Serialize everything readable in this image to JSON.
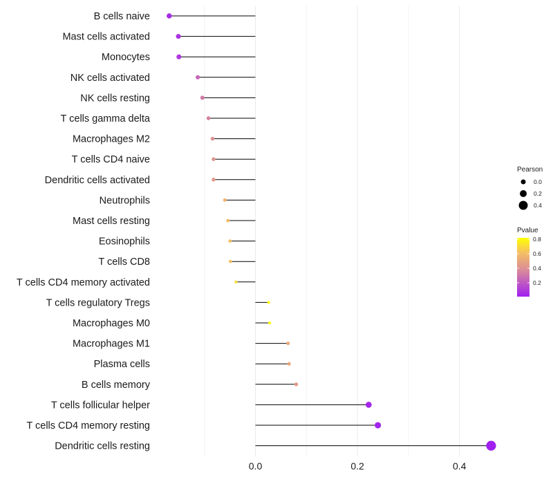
{
  "chart_data": {
    "type": "lollipop",
    "title": "",
    "xlabel": "",
    "ylabel": "",
    "xlim": [
      -0.2,
      0.5
    ],
    "x_ticks": [
      0.0,
      0.2,
      0.4
    ],
    "x_tick_labels": [
      "0.0",
      "0.2",
      "0.4"
    ],
    "categories": [
      "B cells naive",
      "Mast cells activated",
      "Monocytes",
      "NK cells activated",
      "NK cells resting",
      "T cells gamma delta",
      "Macrophages M2",
      "T cells CD4 naive",
      "Dendritic cells activated",
      "Neutrophils",
      "Mast cells resting",
      "Eosinophils",
      "T cells CD8",
      "T cells CD4 memory activated",
      "T cells regulatory  Tregs",
      "Macrophages M0",
      "Macrophages M1",
      "Plasma cells",
      "B cells memory",
      "T cells follicular helper",
      "T cells CD4 memory resting",
      "Dendritic cells resting"
    ],
    "values": [
      -0.169,
      -0.151,
      -0.15,
      -0.113,
      -0.104,
      -0.092,
      -0.084,
      -0.082,
      -0.082,
      -0.06,
      -0.054,
      -0.05,
      -0.049,
      -0.038,
      0.026,
      0.028,
      0.064,
      0.066,
      0.08,
      0.222,
      0.24,
      0.462
    ],
    "pvalues": [
      0.05,
      0.08,
      0.1,
      0.3,
      0.38,
      0.42,
      0.48,
      0.5,
      0.52,
      0.66,
      0.7,
      0.72,
      0.72,
      0.8,
      0.88,
      0.9,
      0.6,
      0.6,
      0.52,
      0.03,
      0.02,
      0.001
    ],
    "legend": {
      "size_title": "Pearson",
      "size_items": [
        "0.0",
        "0.2",
        "0.4"
      ],
      "color_title": "Pvalue",
      "color_ticks": [
        "0.8",
        "0.6",
        "0.4",
        "0.2"
      ],
      "color_low": "#A020F0",
      "color_mid": "#D98B9A",
      "color_high": "#FFFF00"
    }
  }
}
